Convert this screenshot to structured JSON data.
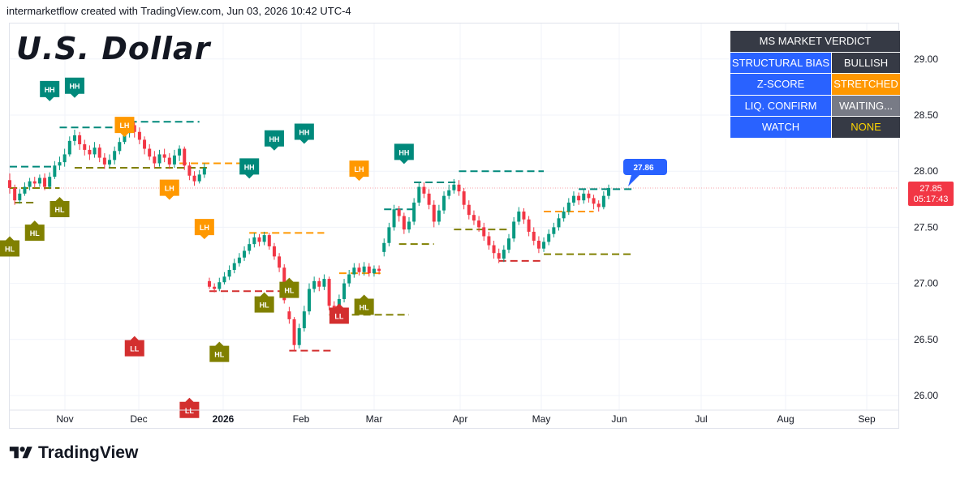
{
  "header": {
    "byline": "intermarketflow created with TradingView.com, Jun 03, 2026 10:42 UTC-4"
  },
  "brand": {
    "name": "TradingView",
    "logo_icon": "tradingview-logo-icon"
  },
  "chart_data": {
    "type": "candlestick",
    "title": "U.S. Dollar",
    "price_axis": {
      "ticks": [
        "29.00",
        "28.50",
        "28.00",
        "27.50",
        "27.00",
        "26.50",
        "26.00"
      ],
      "ylim": [
        25.9,
        29.2
      ]
    },
    "time_axis": {
      "ticks": [
        "Nov",
        "Dec",
        "2026",
        "Feb",
        "Mar",
        "Apr",
        "May",
        "Jun",
        "Jul",
        "Aug",
        "Sep"
      ]
    },
    "grid": true,
    "last_price": {
      "value": "27.85",
      "countdown": "05:17:43",
      "color": "#f23645"
    },
    "projection_label": {
      "value": "27.86",
      "color": "#2962ff"
    },
    "candles": [
      [
        27.92,
        27.85,
        27.98,
        27.8
      ],
      [
        27.85,
        27.74,
        27.88,
        27.7
      ],
      [
        27.74,
        27.8,
        27.84,
        27.71
      ],
      [
        27.8,
        27.86,
        27.9,
        27.78
      ],
      [
        27.86,
        27.91,
        27.94,
        27.83
      ],
      [
        27.91,
        27.89,
        27.95,
        27.85
      ],
      [
        27.89,
        27.94,
        27.97,
        27.86
      ],
      [
        27.94,
        27.86,
        27.98,
        27.83
      ],
      [
        27.86,
        27.95,
        27.99,
        27.84
      ],
      [
        27.95,
        28.05,
        28.09,
        27.93
      ],
      [
        28.05,
        28.08,
        28.13,
        28.01
      ],
      [
        28.08,
        28.15,
        28.2,
        28.04
      ],
      [
        28.15,
        28.27,
        28.31,
        28.13
      ],
      [
        28.27,
        28.32,
        28.37,
        28.23
      ],
      [
        28.32,
        28.24,
        28.35,
        28.19
      ],
      [
        28.24,
        28.19,
        28.28,
        28.14
      ],
      [
        28.19,
        28.15,
        28.23,
        28.1
      ],
      [
        28.15,
        28.21,
        28.26,
        28.12
      ],
      [
        28.21,
        28.12,
        28.24,
        28.08
      ],
      [
        28.12,
        28.06,
        28.16,
        28.02
      ],
      [
        28.06,
        28.1,
        28.15,
        28.03
      ],
      [
        28.1,
        28.18,
        28.22,
        28.06
      ],
      [
        28.18,
        28.26,
        28.3,
        28.15
      ],
      [
        28.26,
        28.34,
        28.39,
        28.24
      ],
      [
        28.34,
        28.41,
        28.45,
        28.3
      ],
      [
        28.41,
        28.35,
        28.44,
        28.3
      ],
      [
        28.35,
        28.28,
        28.39,
        28.24
      ],
      [
        28.28,
        28.2,
        28.31,
        28.15
      ],
      [
        28.2,
        28.13,
        28.24,
        28.1
      ],
      [
        28.13,
        28.07,
        28.18,
        28.03
      ],
      [
        28.07,
        28.15,
        28.19,
        28.04
      ],
      [
        28.15,
        28.12,
        28.2,
        28.08
      ],
      [
        28.12,
        28.06,
        28.16,
        28.02
      ],
      [
        28.06,
        28.14,
        28.19,
        28.03
      ],
      [
        28.14,
        28.2,
        28.23,
        28.09
      ],
      [
        28.2,
        28.05,
        28.22,
        28.01
      ],
      [
        28.05,
        27.96,
        28.08,
        27.92
      ],
      [
        27.96,
        27.91,
        28.0,
        27.87
      ],
      [
        27.91,
        27.97,
        28.01,
        27.89
      ],
      [
        27.97,
        28.03,
        28.07,
        27.94
      ],
      [
        27.02,
        26.97,
        27.05,
        26.95
      ],
      [
        26.97,
        26.95,
        27.0,
        26.92
      ],
      [
        26.95,
        27.01,
        27.05,
        26.93
      ],
      [
        27.01,
        27.06,
        27.1,
        26.99
      ],
      [
        27.06,
        27.12,
        27.16,
        27.03
      ],
      [
        27.12,
        27.18,
        27.22,
        27.09
      ],
      [
        27.18,
        27.23,
        27.27,
        27.15
      ],
      [
        27.23,
        27.29,
        27.33,
        27.2
      ],
      [
        27.29,
        27.35,
        27.4,
        27.26
      ],
      [
        27.35,
        27.41,
        27.45,
        27.32
      ],
      [
        27.41,
        27.37,
        27.44,
        27.33
      ],
      [
        27.37,
        27.43,
        27.46,
        27.34
      ],
      [
        27.43,
        27.33,
        27.45,
        27.3
      ],
      [
        27.33,
        27.24,
        27.36,
        27.21
      ],
      [
        27.24,
        27.14,
        27.27,
        27.1
      ],
      [
        27.14,
        26.85,
        27.17,
        26.82
      ],
      [
        26.75,
        26.68,
        26.79,
        26.64
      ],
      [
        26.68,
        26.45,
        26.7,
        26.4
      ],
      [
        26.45,
        26.6,
        26.64,
        26.42
      ],
      [
        26.6,
        26.75,
        26.8,
        26.57
      ],
      [
        26.75,
        26.95,
        27.0,
        26.72
      ],
      [
        26.95,
        27.02,
        27.06,
        26.92
      ],
      [
        27.02,
        26.97,
        27.05,
        26.93
      ],
      [
        26.97,
        27.04,
        27.08,
        26.94
      ],
      [
        27.04,
        26.8,
        27.06,
        26.76
      ],
      [
        26.8,
        26.74,
        26.84,
        26.71
      ],
      [
        26.74,
        26.86,
        26.9,
        26.72
      ],
      [
        26.86,
        27.0,
        27.04,
        26.83
      ],
      [
        27.0,
        27.08,
        27.12,
        26.97
      ],
      [
        27.08,
        27.14,
        27.18,
        27.05
      ],
      [
        27.14,
        27.1,
        27.18,
        27.07
      ],
      [
        27.1,
        27.15,
        27.19,
        27.07
      ],
      [
        27.15,
        27.09,
        27.18,
        27.06
      ],
      [
        27.09,
        27.13,
        27.16,
        27.06
      ],
      [
        27.13,
        27.11,
        27.16,
        27.08
      ],
      [
        27.28,
        27.36,
        27.4,
        27.24
      ],
      [
        27.36,
        27.5,
        27.54,
        27.33
      ],
      [
        27.5,
        27.66,
        27.7,
        27.47
      ],
      [
        27.66,
        27.6,
        27.69,
        27.55
      ],
      [
        27.6,
        27.48,
        27.63,
        27.44
      ],
      [
        27.48,
        27.55,
        27.59,
        27.45
      ],
      [
        27.55,
        27.72,
        27.76,
        27.52
      ],
      [
        27.72,
        27.86,
        27.9,
        27.69
      ],
      [
        27.86,
        27.8,
        27.9,
        27.76
      ],
      [
        27.8,
        27.7,
        27.84,
        27.66
      ],
      [
        27.7,
        27.55,
        27.74,
        27.5
      ],
      [
        27.55,
        27.65,
        27.7,
        27.52
      ],
      [
        27.65,
        27.78,
        27.82,
        27.62
      ],
      [
        27.78,
        27.83,
        27.88,
        27.75
      ],
      [
        27.83,
        27.88,
        27.93,
        27.8
      ],
      [
        27.88,
        27.82,
        27.92,
        27.78
      ],
      [
        27.82,
        27.7,
        27.85,
        27.66
      ],
      [
        27.7,
        27.61,
        27.74,
        27.57
      ],
      [
        27.61,
        27.56,
        27.65,
        27.52
      ],
      [
        27.56,
        27.5,
        27.6,
        27.46
      ],
      [
        27.5,
        27.42,
        27.54,
        27.38
      ],
      [
        27.42,
        27.34,
        27.46,
        27.3
      ],
      [
        27.34,
        27.27,
        27.38,
        27.22
      ],
      [
        27.27,
        27.22,
        27.31,
        27.18
      ],
      [
        27.22,
        27.3,
        27.34,
        27.19
      ],
      [
        27.3,
        27.4,
        27.44,
        27.27
      ],
      [
        27.4,
        27.55,
        27.59,
        27.37
      ],
      [
        27.55,
        27.64,
        27.68,
        27.52
      ],
      [
        27.64,
        27.57,
        27.67,
        27.53
      ],
      [
        27.57,
        27.46,
        27.6,
        27.42
      ],
      [
        27.46,
        27.38,
        27.5,
        27.34
      ],
      [
        27.38,
        27.31,
        27.42,
        27.27
      ],
      [
        27.31,
        27.37,
        27.41,
        27.28
      ],
      [
        27.37,
        27.44,
        27.48,
        27.34
      ],
      [
        27.44,
        27.5,
        27.54,
        27.41
      ],
      [
        27.5,
        27.58,
        27.62,
        27.47
      ],
      [
        27.58,
        27.64,
        27.68,
        27.55
      ],
      [
        27.64,
        27.72,
        27.76,
        27.61
      ],
      [
        27.72,
        27.78,
        27.82,
        27.69
      ],
      [
        27.78,
        27.74,
        27.81,
        27.7
      ],
      [
        27.74,
        27.8,
        27.84,
        27.71
      ],
      [
        27.8,
        27.76,
        27.83,
        27.72
      ],
      [
        27.76,
        27.71,
        27.79,
        27.66
      ],
      [
        27.71,
        27.68,
        27.74,
        27.64
      ],
      [
        27.68,
        27.78,
        27.82,
        27.66
      ],
      [
        27.78,
        27.85,
        27.88,
        27.75
      ]
    ],
    "structure_levels": [
      {
        "y": 28.04,
        "i0": 0,
        "i1": 9,
        "type": "HH"
      },
      {
        "y": 28.39,
        "i0": 10,
        "i1": 23,
        "type": "HH"
      },
      {
        "y": 28.44,
        "i0": 24,
        "i1": 38,
        "type": "HH"
      },
      {
        "y": 27.85,
        "i0": 0,
        "i1": 10,
        "type": "HL"
      },
      {
        "y": 27.72,
        "i0": 1,
        "i1": 5,
        "type": "HL"
      },
      {
        "y": 28.03,
        "i0": 13,
        "i1": 40,
        "type": "HL"
      },
      {
        "y": 28.07,
        "i0": 34,
        "i1": 48,
        "type": "LH"
      },
      {
        "y": 26.93,
        "i0": 40,
        "i1": 56,
        "type": "LL"
      },
      {
        "y": 27.45,
        "i0": 48,
        "i1": 63,
        "type": "LH"
      },
      {
        "y": 26.4,
        "i0": 56,
        "i1": 65,
        "type": "LL"
      },
      {
        "y": 26.72,
        "i0": 64,
        "i1": 80,
        "type": "HL"
      },
      {
        "y": 27.09,
        "i0": 66,
        "i1": 75,
        "type": "LH"
      },
      {
        "y": 27.66,
        "i0": 75,
        "i1": 81,
        "type": "HH"
      },
      {
        "y": 27.35,
        "i0": 78,
        "i1": 85,
        "type": "HL"
      },
      {
        "y": 27.9,
        "i0": 81,
        "i1": 90,
        "type": "HH"
      },
      {
        "y": 28.0,
        "i0": 90,
        "i1": 107,
        "type": "HH"
      },
      {
        "y": 27.48,
        "i0": 89,
        "i1": 100,
        "type": "HL"
      },
      {
        "y": 27.2,
        "i0": 98,
        "i1": 107,
        "type": "LL"
      },
      {
        "y": 27.64,
        "i0": 107,
        "i1": 117,
        "type": "LH"
      },
      {
        "y": 27.26,
        "i0": 107,
        "i1": 125,
        "type": "HL"
      },
      {
        "y": 27.84,
        "i0": 114,
        "i1": 125,
        "type": "HH"
      }
    ],
    "labels": [
      {
        "text": "HL",
        "i": 0,
        "y": 27.42,
        "type": "HL",
        "dir": "up"
      },
      {
        "text": "HL",
        "i": 5,
        "y": 27.56,
        "type": "HL",
        "dir": "up"
      },
      {
        "text": "HL",
        "i": 10,
        "y": 27.77,
        "type": "HL",
        "dir": "up"
      },
      {
        "text": "HH",
        "i": 8,
        "y": 28.66,
        "type": "HH",
        "dir": "down"
      },
      {
        "text": "HH",
        "i": 13,
        "y": 28.69,
        "type": "HH",
        "dir": "down"
      },
      {
        "text": "LH",
        "i": 23,
        "y": 28.34,
        "type": "LH",
        "dir": "down"
      },
      {
        "text": "LL",
        "i": 25,
        "y": 26.53,
        "type": "LL",
        "dir": "up"
      },
      {
        "text": "LH",
        "i": 32,
        "y": 27.78,
        "type": "LH",
        "dir": "down"
      },
      {
        "text": "LL",
        "i": 36,
        "y": 25.98,
        "type": "LL",
        "dir": "up"
      },
      {
        "text": "LH",
        "i": 39,
        "y": 27.43,
        "type": "LH",
        "dir": "down"
      },
      {
        "text": "HL",
        "i": 42,
        "y": 26.48,
        "type": "HL",
        "dir": "up"
      },
      {
        "text": "HH",
        "i": 48,
        "y": 27.97,
        "type": "HH",
        "dir": "down"
      },
      {
        "text": "HL",
        "i": 51,
        "y": 26.92,
        "type": "HL",
        "dir": "up"
      },
      {
        "text": "HH",
        "i": 53,
        "y": 28.22,
        "type": "HH",
        "dir": "down"
      },
      {
        "text": "HL",
        "i": 56,
        "y": 27.05,
        "type": "HL",
        "dir": "up"
      },
      {
        "text": "HH",
        "i": 59,
        "y": 28.28,
        "type": "HH",
        "dir": "down"
      },
      {
        "text": "LH",
        "i": 70,
        "y": 27.95,
        "type": "LH",
        "dir": "down"
      },
      {
        "text": "LL",
        "i": 66,
        "y": 26.82,
        "type": "LL",
        "dir": "up"
      },
      {
        "text": "HL",
        "i": 71,
        "y": 26.9,
        "type": "HL",
        "dir": "up"
      },
      {
        "text": "HH",
        "i": 79,
        "y": 28.1,
        "type": "HH",
        "dir": "down"
      }
    ]
  },
  "verdict": {
    "title": "MS MARKET VERDICT",
    "rows": [
      {
        "label": "STRUCTURAL BIAS",
        "value": "BULLISH",
        "bg": "#363a45",
        "fg": "#ffffff"
      },
      {
        "label": "Z-SCORE",
        "value": "STRETCHED",
        "bg": "#ff9800",
        "fg": "#ffffff"
      },
      {
        "label": "LIQ. CONFIRM",
        "value": "WAITING...",
        "bg": "#787b86",
        "fg": "#ffffff"
      },
      {
        "label": "WATCH",
        "value": "NONE",
        "bg": "#363a45",
        "fg": "#ffd600"
      }
    ]
  },
  "colors": {
    "up": "#089981",
    "down": "#f23645",
    "grid": "#f0f3fa",
    "axis_text": "#131722",
    "HH": "#00897b",
    "HL": "#808000",
    "LH": "#ff9800",
    "LL": "#d32f2f"
  }
}
